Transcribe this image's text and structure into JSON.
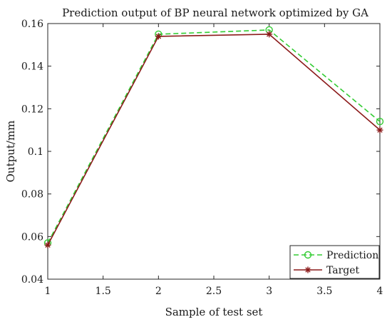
{
  "chart_data": {
    "type": "line",
    "title": "Prediction output of  BP neural network  optimized by GA",
    "xlabel": "Sample of test set",
    "ylabel": "Output/mm",
    "xlim": [
      1,
      4
    ],
    "ylim": [
      0.04,
      0.16
    ],
    "xticks": [
      1,
      1.5,
      2,
      2.5,
      3,
      3.5,
      4
    ],
    "xtick_labels": [
      "1",
      "1.5",
      "2",
      "2.5",
      "3",
      "3.5",
      "4"
    ],
    "yticks": [
      0.04,
      0.06,
      0.08,
      0.1,
      0.12,
      0.14,
      0.16
    ],
    "ytick_labels": [
      "0.04",
      "0.06",
      "0.08",
      "0.1",
      "0.12",
      "0.14",
      "0.16"
    ],
    "grid": false,
    "legend_position": "bottom-right",
    "x": [
      1,
      2,
      3,
      4
    ],
    "series": [
      {
        "name": "Prediction",
        "values": [
          0.057,
          0.155,
          0.157,
          0.114
        ],
        "color": "#33cc33",
        "line": "dashed",
        "marker": "circle"
      },
      {
        "name": "Target",
        "values": [
          0.056,
          0.154,
          0.155,
          0.11
        ],
        "color": "#8b1a1a",
        "line": "solid",
        "marker": "asterisk"
      }
    ]
  }
}
